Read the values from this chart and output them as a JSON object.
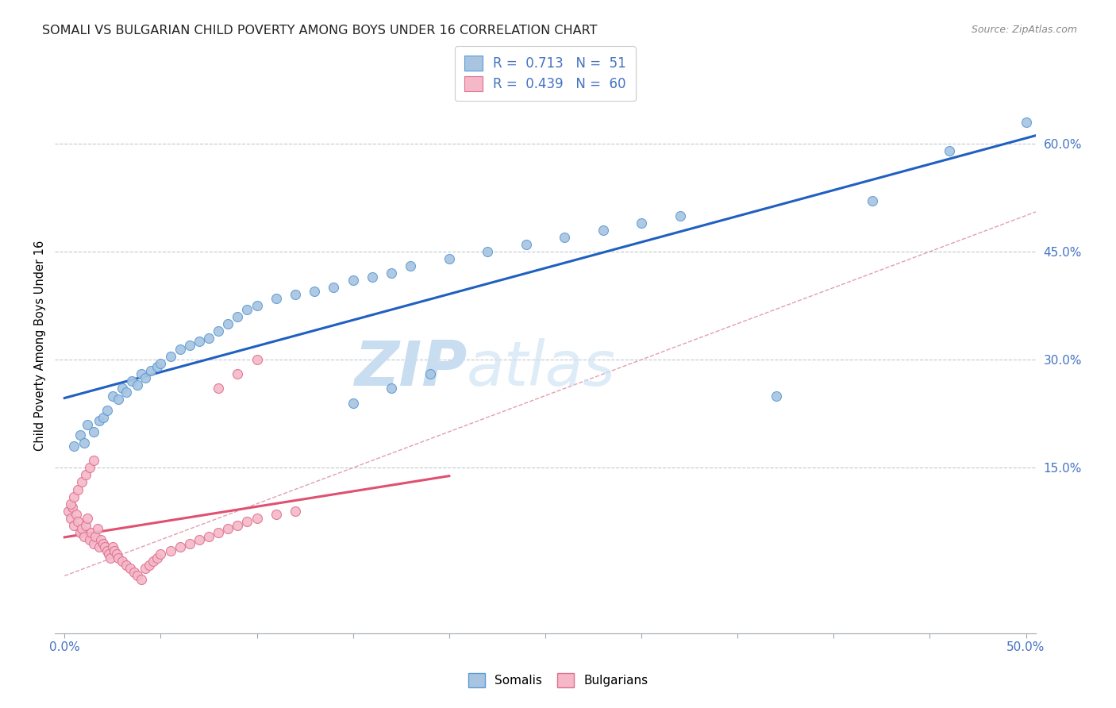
{
  "title": "SOMALI VS BULGARIAN CHILD POVERTY AMONG BOYS UNDER 16 CORRELATION CHART",
  "source": "Source: ZipAtlas.com",
  "ylabel": "Child Poverty Among Boys Under 16",
  "xlim": [
    -0.005,
    0.505
  ],
  "ylim": [
    -0.08,
    0.72
  ],
  "xticks": [
    0.0,
    0.05,
    0.1,
    0.15,
    0.2,
    0.25,
    0.3,
    0.35,
    0.4,
    0.45,
    0.5
  ],
  "xticklabels": [
    "0.0%",
    "",
    "",
    "",
    "",
    "",
    "",
    "",
    "",
    "",
    "50.0%"
  ],
  "ytick_positions": [
    0.15,
    0.3,
    0.45,
    0.6
  ],
  "yticklabels": [
    "15.0%",
    "30.0%",
    "45.0%",
    "60.0%"
  ],
  "somali_color": "#a8c4e0",
  "somali_edge": "#5b9bd5",
  "bulgarian_color": "#f4b8c8",
  "bulgarian_edge": "#e07090",
  "regression_somali_color": "#2060c0",
  "regression_bulgarian_color": "#e05070",
  "diagonal_color": "#e0a0b0",
  "watermark_zip_color": "#c8ddf0",
  "watermark_atlas_color": "#c8ddf0",
  "R_somali": 0.713,
  "N_somali": 51,
  "R_bulgarian": 0.439,
  "N_bulgarian": 60,
  "somali_x": [
    0.005,
    0.008,
    0.01,
    0.012,
    0.015,
    0.018,
    0.02,
    0.022,
    0.025,
    0.028,
    0.03,
    0.032,
    0.035,
    0.038,
    0.04,
    0.042,
    0.045,
    0.048,
    0.05,
    0.055,
    0.06,
    0.065,
    0.07,
    0.075,
    0.08,
    0.085,
    0.09,
    0.095,
    0.1,
    0.11,
    0.12,
    0.13,
    0.14,
    0.15,
    0.16,
    0.17,
    0.18,
    0.2,
    0.22,
    0.24,
    0.26,
    0.28,
    0.3,
    0.32,
    0.15,
    0.17,
    0.19,
    0.37,
    0.42,
    0.46,
    0.5
  ],
  "somali_y": [
    0.18,
    0.195,
    0.185,
    0.21,
    0.2,
    0.215,
    0.22,
    0.23,
    0.25,
    0.245,
    0.26,
    0.255,
    0.27,
    0.265,
    0.28,
    0.275,
    0.285,
    0.29,
    0.295,
    0.305,
    0.315,
    0.32,
    0.325,
    0.33,
    0.34,
    0.35,
    0.36,
    0.37,
    0.375,
    0.385,
    0.39,
    0.395,
    0.4,
    0.41,
    0.415,
    0.42,
    0.43,
    0.44,
    0.45,
    0.46,
    0.47,
    0.48,
    0.49,
    0.5,
    0.24,
    0.26,
    0.28,
    0.25,
    0.52,
    0.59,
    0.63
  ],
  "bulgarian_x": [
    0.002,
    0.003,
    0.004,
    0.005,
    0.006,
    0.007,
    0.008,
    0.009,
    0.01,
    0.011,
    0.012,
    0.013,
    0.014,
    0.015,
    0.016,
    0.017,
    0.018,
    0.019,
    0.02,
    0.021,
    0.022,
    0.023,
    0.024,
    0.025,
    0.026,
    0.027,
    0.028,
    0.03,
    0.032,
    0.034,
    0.036,
    0.038,
    0.04,
    0.042,
    0.044,
    0.046,
    0.048,
    0.05,
    0.055,
    0.06,
    0.065,
    0.07,
    0.075,
    0.08,
    0.085,
    0.09,
    0.095,
    0.1,
    0.11,
    0.12,
    0.003,
    0.005,
    0.007,
    0.009,
    0.011,
    0.013,
    0.015,
    0.08,
    0.09,
    0.1
  ],
  "bulgarian_y": [
    0.09,
    0.08,
    0.095,
    0.07,
    0.085,
    0.075,
    0.06,
    0.065,
    0.055,
    0.07,
    0.08,
    0.05,
    0.06,
    0.045,
    0.055,
    0.065,
    0.04,
    0.05,
    0.045,
    0.04,
    0.035,
    0.03,
    0.025,
    0.04,
    0.035,
    0.03,
    0.025,
    0.02,
    0.015,
    0.01,
    0.005,
    0.0,
    -0.005,
    0.01,
    0.015,
    0.02,
    0.025,
    0.03,
    0.035,
    0.04,
    0.045,
    0.05,
    0.055,
    0.06,
    0.065,
    0.07,
    0.075,
    0.08,
    0.085,
    0.09,
    0.1,
    0.11,
    0.12,
    0.13,
    0.14,
    0.15,
    0.16,
    0.26,
    0.28,
    0.3
  ]
}
